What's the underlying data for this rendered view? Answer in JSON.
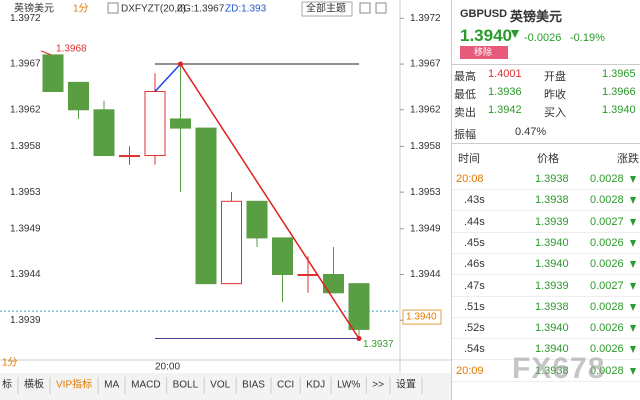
{
  "chart": {
    "title": "英镑美元",
    "period": "1分",
    "indicator": "DXFYZT(20,0)",
    "zg": "ZG:1.3967",
    "zd": "ZD:1.393",
    "theme": "全部主题",
    "time_label": "20:00",
    "high_marker": "1.3968",
    "low_marker": "1.3937",
    "price_tag": "1.3940",
    "current_price": 1.394,
    "ylim": [
      1.3934,
      1.3974
    ],
    "yticks": [
      1.3972,
      1.3967,
      1.3962,
      1.3958,
      1.3953,
      1.3949,
      1.3944,
      1.3939
    ],
    "candles": [
      {
        "open": 1.3968,
        "high": 1.3968,
        "low": 1.3964,
        "close": 1.3964
      },
      {
        "open": 1.3965,
        "high": 1.3965,
        "low": 1.3961,
        "close": 1.3962
      },
      {
        "open": 1.3962,
        "high": 1.3963,
        "low": 1.3957,
        "close": 1.3957
      },
      {
        "open": 1.3957,
        "high": 1.3958,
        "low": 1.3956,
        "close": 1.3957
      },
      {
        "open": 1.3957,
        "high": 1.3966,
        "low": 1.3956,
        "close": 1.3964
      },
      {
        "open": 1.3961,
        "high": 1.3967,
        "low": 1.3953,
        "close": 1.396
      },
      {
        "open": 1.396,
        "high": 1.396,
        "low": 1.3943,
        "close": 1.3943
      },
      {
        "open": 1.3943,
        "high": 1.3953,
        "low": 1.3943,
        "close": 1.3952
      },
      {
        "open": 1.3952,
        "high": 1.3952,
        "low": 1.3947,
        "close": 1.3948
      },
      {
        "open": 1.3948,
        "high": 1.3948,
        "low": 1.3941,
        "close": 1.3944
      },
      {
        "open": 1.3944,
        "high": 1.3946,
        "low": 1.3942,
        "close": 1.3944
      },
      {
        "open": 1.3944,
        "high": 1.3947,
        "low": 1.3942,
        "close": 1.3942
      },
      {
        "open": 1.3943,
        "high": 1.3943,
        "low": 1.3937,
        "close": 1.3938
      }
    ]
  },
  "toolbar": [
    "标",
    "横板",
    "VIP指标",
    "MA",
    "MACD",
    "BOLL",
    "VOL",
    "BIAS",
    "CCI",
    "KDJ",
    "LW%",
    ">>",
    "设置"
  ],
  "quote": {
    "symbol": "GBPUSD",
    "name": "英镑美元",
    "price": "1.3940",
    "change": "-0.0026",
    "change_pct": "-0.19%",
    "remove": "移除",
    "rows": [
      [
        "最高",
        "1.4001",
        "开盘",
        "1.3965"
      ],
      [
        "最低",
        "1.3936",
        "昨收",
        "1.3966"
      ],
      [
        "卖出",
        "1.3942",
        "买入",
        "1.3940"
      ]
    ],
    "amplitude_label": "振幅",
    "amplitude": "0.47%"
  },
  "ticks_table": {
    "headers": [
      "时间",
      "价格",
      "涨跌"
    ],
    "rows": [
      [
        "20:08",
        "1.3938",
        "0.0028"
      ],
      [
        ".43s",
        "1.3938",
        "0.0028"
      ],
      [
        ".44s",
        "1.3939",
        "0.0027"
      ],
      [
        ".45s",
        "1.3940",
        "0.0026"
      ],
      [
        ".46s",
        "1.3940",
        "0.0026"
      ],
      [
        ".47s",
        "1.3939",
        "0.0027"
      ],
      [
        ".51s",
        "1.3938",
        "0.0028"
      ],
      [
        ".52s",
        "1.3940",
        "0.0026"
      ],
      [
        ".54s",
        "1.3940",
        "0.0026"
      ],
      [
        "20:09",
        "1.3938",
        "0.0028"
      ]
    ]
  },
  "watermark": "FX678"
}
